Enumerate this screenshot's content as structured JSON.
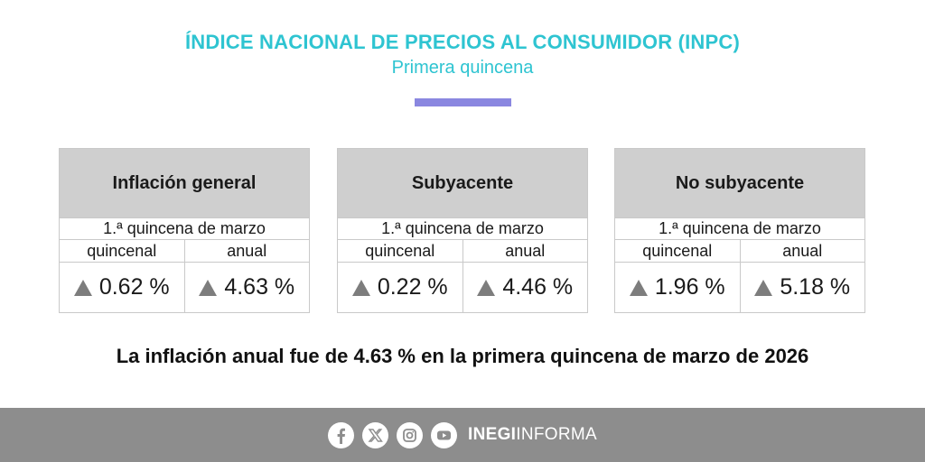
{
  "header": {
    "title": "ÍNDICE NACIONAL DE PRECIOS AL CONSUMIDOR (INPC)",
    "subtitle": "Primera quincena"
  },
  "cards": [
    {
      "title": "Inflación general",
      "period": "1.ª quincena de marzo",
      "col_quincenal": "quincenal",
      "col_anual": "anual",
      "quincenal_value": "0.62 %",
      "anual_value": "4.63 %"
    },
    {
      "title": "Subyacente",
      "period": "1.ª quincena de marzo",
      "col_quincenal": "quincenal",
      "col_anual": "anual",
      "quincenal_value": "0.22 %",
      "anual_value": "4.46 %"
    },
    {
      "title": "No subyacente",
      "period": "1.ª quincena de marzo",
      "col_quincenal": "quincenal",
      "col_anual": "anual",
      "quincenal_value": "1.96 %",
      "anual_value": "5.18 %"
    }
  ],
  "headline": "La inflación anual fue de 4.63 % en la primera quincena de marzo de 2026",
  "footer": {
    "brand_bold": "INEGI",
    "brand_light": "INFORMA",
    "icons": [
      "facebook-icon",
      "x-icon",
      "instagram-icon",
      "youtube-icon"
    ]
  },
  "colors": {
    "title": "#2ec4d1",
    "accent_bar": "#8a87e0",
    "card_header": "#cfcfcf",
    "up_triangle": "#7d7d7d",
    "footer_bg": "#8d8d8d"
  }
}
